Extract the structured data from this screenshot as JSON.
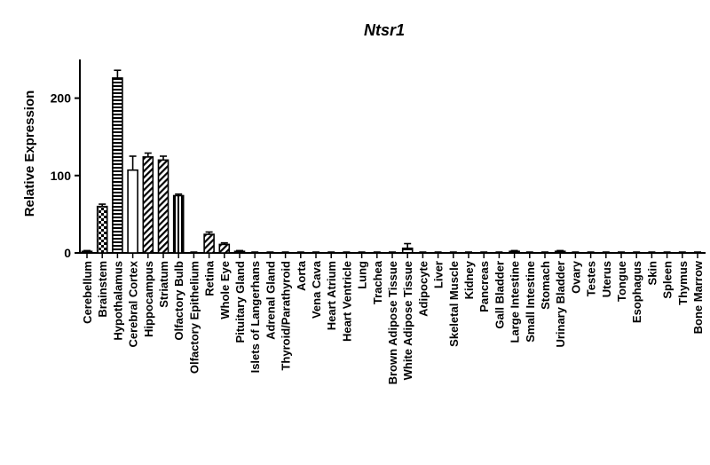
{
  "chart_data": {
    "type": "bar",
    "title": "Ntsr1",
    "xlabel": "",
    "ylabel": "Relative Expression",
    "ylim": [
      0,
      250
    ],
    "yticks": [
      0,
      100,
      200
    ],
    "grid": false,
    "categories": [
      "Cerebellum",
      "Brainstem",
      "Hypothalamus",
      "Cerebral Cortex",
      "Hippocampus",
      "Striatum",
      "Olfactory Bulb",
      "Olfactory Epithelium",
      "Retina",
      "Whole Eye",
      "Pituitary Gland",
      "Islets of Langerhans",
      "Adrenal Gland",
      "Thyroid/Parathyroid",
      "Aorta",
      "Vena Cava",
      "Heart Atrium",
      "Heart Ventricle",
      "Lung",
      "Trachea",
      "Brown Adipose Tissue",
      "White Adipose Tissue",
      "Adipocyte",
      "Liver",
      "Skeletal Muscle",
      "Kidney",
      "Pancreas",
      "Gall Bladder",
      "Large Intestine",
      "Small Intestine",
      "Stomach",
      "Urinary Bladder",
      "Ovary",
      "Testes",
      "Uterus",
      "Tongue",
      "Esophagus",
      "Skin",
      "Spleen",
      "Thymus",
      "Bone Marrow"
    ],
    "values": [
      2,
      60,
      226,
      107,
      124,
      120,
      74,
      0,
      24,
      11,
      2,
      0,
      0,
      0,
      0,
      0,
      0,
      0,
      0,
      0,
      0,
      6,
      0,
      0,
      0,
      0,
      0,
      0,
      2,
      0,
      0,
      2,
      0,
      0,
      0,
      0,
      0,
      0,
      0,
      0,
      0
    ],
    "errors": [
      1,
      3,
      10,
      18,
      5,
      5,
      2,
      0,
      3,
      2,
      1,
      0,
      0,
      0,
      0,
      0,
      0,
      0,
      0,
      0,
      0,
      6,
      0,
      0,
      0,
      0,
      0,
      0,
      1,
      0,
      0,
      1,
      0,
      0,
      0,
      0,
      0,
      0,
      0,
      0,
      0
    ],
    "patterns": [
      "solid",
      "checker",
      "hstripe",
      "open",
      "diag",
      "diag",
      "vstripe",
      "open",
      "diag",
      "diag",
      "solid",
      "open",
      "open",
      "open",
      "open",
      "open",
      "open",
      "open",
      "open",
      "open",
      "open",
      "hstripe",
      "open",
      "open",
      "open",
      "open",
      "open",
      "open",
      "solid",
      "open",
      "open",
      "solid",
      "open",
      "open",
      "open",
      "open",
      "open",
      "open",
      "open",
      "open",
      "open"
    ]
  }
}
